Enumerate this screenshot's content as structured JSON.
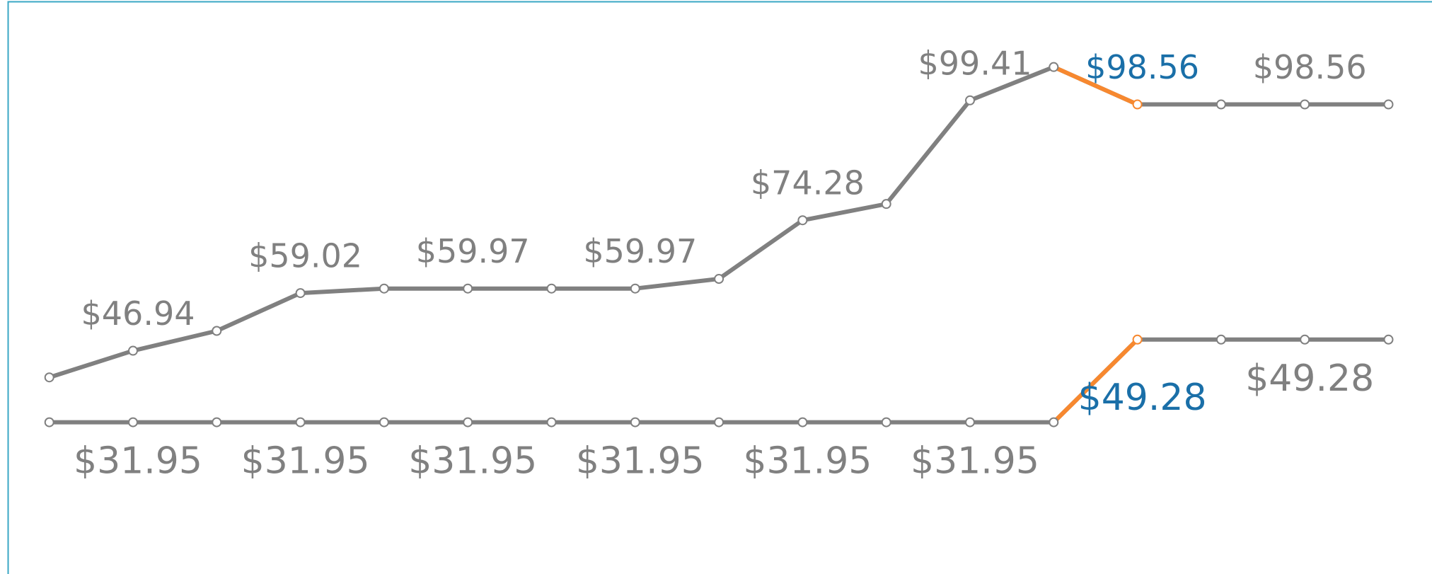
{
  "chart_data": {
    "type": "line",
    "categories": [
      null,
      null,
      null,
      null,
      null,
      null,
      null,
      null,
      null,
      null,
      null,
      null,
      null,
      null,
      null,
      null,
      null
    ],
    "ylim": [
      0,
      120
    ],
    "highlight_segment": [
      12,
      13
    ],
    "highlight_color": "#f7882f",
    "highlight_label_color": "#1a6fa8",
    "label_color": "#808080",
    "series": [
      {
        "color": "#808080",
        "label_position": "above",
        "values": [
          41.35,
          46.94,
          51.1,
          59.02,
          59.97,
          59.97,
          59.97,
          59.97,
          62.0,
          74.28,
          77.7,
          99.41,
          106.4,
          98.56,
          98.56,
          98.56,
          98.56
        ],
        "value_labels": [
          null,
          "$46.94",
          null,
          "$59.02",
          null,
          "$59.97",
          null,
          "$59.97",
          null,
          "$74.28",
          null,
          "$99.41",
          null,
          "$98.56",
          null,
          "$98.56",
          null
        ]
      },
      {
        "color": "#808080",
        "label_position": "below",
        "values": [
          31.95,
          31.95,
          31.95,
          31.95,
          31.95,
          31.95,
          31.95,
          31.95,
          31.95,
          31.95,
          31.95,
          31.95,
          31.95,
          49.28,
          49.28,
          49.28,
          49.28
        ],
        "value_labels": [
          null,
          "$31.95",
          null,
          "$31.95",
          null,
          "$31.95",
          null,
          "$31.95",
          null,
          "$31.95",
          null,
          "$31.95",
          null,
          "$49.28",
          null,
          "$49.28",
          null
        ]
      }
    ]
  }
}
